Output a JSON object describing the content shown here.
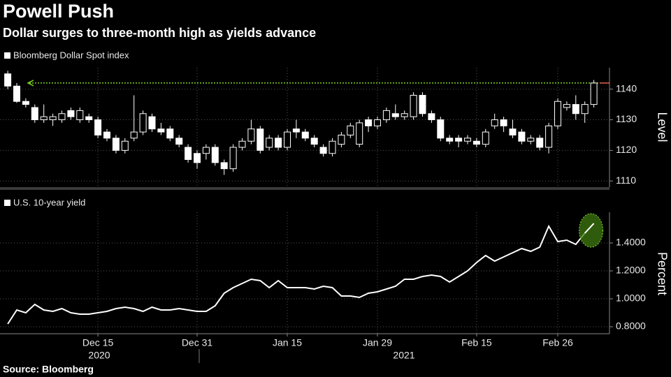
{
  "title": "Powell Push",
  "subtitle": "Dollar surges to three-month high as yields advance",
  "source": "Source: Bloomberg",
  "chart_data": [
    {
      "type": "candlestick",
      "name": "Bloomberg Dollar Spot index",
      "ylabel": "Level",
      "color": "#ffffff",
      "open": [
        1145,
        1141,
        1136,
        1134,
        1130,
        1130,
        1130,
        1133,
        1130,
        1131,
        1130,
        1126,
        1124,
        1120,
        1124,
        1126,
        1131,
        1127,
        1127,
        1124,
        1121,
        1119,
        1119,
        1121,
        1116,
        1114,
        1121,
        1123,
        1127,
        1121,
        1124,
        1121,
        1127,
        1126,
        1124,
        1121,
        1119,
        1122,
        1125,
        1122,
        1130,
        1128,
        1130,
        1132,
        1131,
        1131,
        1138,
        1132,
        1130,
        1124,
        1124,
        1123,
        1123,
        1122,
        1128,
        1130,
        1127,
        1126,
        1123,
        1124,
        1121,
        1128,
        1134,
        1135,
        1132,
        1135
      ],
      "high": [
        1146,
        1142,
        1137,
        1135,
        1135,
        1132,
        1133,
        1134,
        1134,
        1132,
        1131,
        1127,
        1125,
        1124,
        1138,
        1133,
        1132,
        1129,
        1128,
        1125,
        1122,
        1120,
        1122,
        1122,
        1117,
        1122,
        1124,
        1130,
        1128,
        1125,
        1125,
        1127,
        1130,
        1127,
        1125,
        1122,
        1124,
        1126,
        1129,
        1130,
        1131,
        1131,
        1134,
        1135,
        1133,
        1139,
        1139,
        1133,
        1131,
        1125,
        1125,
        1125,
        1124,
        1127,
        1132,
        1131,
        1130,
        1127,
        1125,
        1125,
        1129,
        1137,
        1136,
        1138,
        1136,
        1143
      ],
      "low": [
        1140,
        1135.5,
        1134,
        1129,
        1129,
        1128,
        1129,
        1130,
        1129,
        1129,
        1124,
        1123,
        1119,
        1119,
        1123,
        1125,
        1126,
        1125,
        1123,
        1121,
        1116,
        1114,
        1117,
        1115,
        1112,
        1113,
        1120,
        1122,
        1119,
        1120,
        1120,
        1120,
        1124,
        1123,
        1121,
        1118,
        1118,
        1121,
        1124,
        1121,
        1126,
        1127,
        1129,
        1130,
        1130,
        1130,
        1131,
        1129,
        1123,
        1122,
        1121,
        1122,
        1121,
        1121,
        1127,
        1126,
        1124,
        1122,
        1122,
        1120,
        1119,
        1127,
        1133,
        1130,
        1129,
        1134
      ],
      "close": [
        1141,
        1136,
        1135,
        1130,
        1131,
        1131,
        1132,
        1131,
        1133,
        1130,
        1125,
        1124,
        1120,
        1123,
        1126,
        1132,
        1127,
        1126,
        1124,
        1122,
        1117,
        1116,
        1121,
        1116,
        1114,
        1121,
        1123,
        1127,
        1120,
        1124,
        1121,
        1126,
        1126,
        1124,
        1122,
        1119,
        1123,
        1125,
        1128,
        1129,
        1128,
        1130,
        1133,
        1131,
        1132,
        1138,
        1132,
        1130,
        1124,
        1123,
        1123,
        1124,
        1122,
        1126,
        1130,
        1128,
        1125,
        1123,
        1124,
        1121,
        1128,
        1136,
        1135,
        1132,
        1135,
        1142
      ],
      "ylim": [
        1108,
        1147
      ],
      "yticks": [
        1110,
        1120,
        1130,
        1140
      ],
      "grid": true,
      "reference_level": 1142,
      "reference_color": "#7ed321"
    },
    {
      "type": "line",
      "ylabel": "Percent",
      "categories": [
        null,
        null,
        null,
        null,
        null,
        null,
        null,
        null,
        null,
        null,
        "Dec 15",
        null,
        null,
        null,
        null,
        null,
        null,
        null,
        null,
        null,
        null,
        "Dec 31",
        null,
        null,
        null,
        null,
        null,
        null,
        null,
        null,
        null,
        "Jan 15",
        null,
        null,
        null,
        null,
        null,
        null,
        null,
        null,
        null,
        "Jan 29",
        null,
        null,
        null,
        null,
        null,
        null,
        null,
        null,
        null,
        null,
        "Feb 15",
        null,
        null,
        null,
        null,
        null,
        null,
        null,
        null,
        "Feb 26",
        null,
        null,
        null,
        null
      ],
      "years": [
        "2020",
        "2021"
      ],
      "series": [
        {
          "name": "U.S. 10-year yield",
          "color": "#ffffff",
          "values": [
            0.82,
            0.92,
            0.9,
            0.96,
            0.92,
            0.91,
            0.93,
            0.9,
            0.89,
            0.89,
            0.9,
            0.91,
            0.93,
            0.94,
            0.93,
            0.91,
            0.94,
            0.92,
            0.92,
            0.93,
            0.92,
            0.91,
            0.91,
            0.95,
            1.04,
            1.08,
            1.11,
            1.14,
            1.13,
            1.08,
            1.13,
            1.08,
            1.08,
            1.08,
            1.07,
            1.09,
            1.08,
            1.02,
            1.02,
            1.01,
            1.04,
            1.05,
            1.07,
            1.09,
            1.14,
            1.14,
            1.16,
            1.17,
            1.16,
            1.12,
            1.16,
            1.2,
            1.26,
            1.31,
            1.27,
            1.3,
            1.33,
            1.36,
            1.34,
            1.37,
            1.52,
            1.41,
            1.42,
            1.39,
            1.47,
            1.54
          ]
        }
      ],
      "ylim": [
        0.75,
        1.62
      ],
      "yticks": [
        {
          "value": 0.8,
          "label": "0.8000"
        },
        {
          "value": 1.0,
          "label": "1.0000"
        },
        {
          "value": 1.2,
          "label": "1.2000"
        },
        {
          "value": 1.4,
          "label": "1.4000"
        }
      ],
      "grid": true
    }
  ]
}
